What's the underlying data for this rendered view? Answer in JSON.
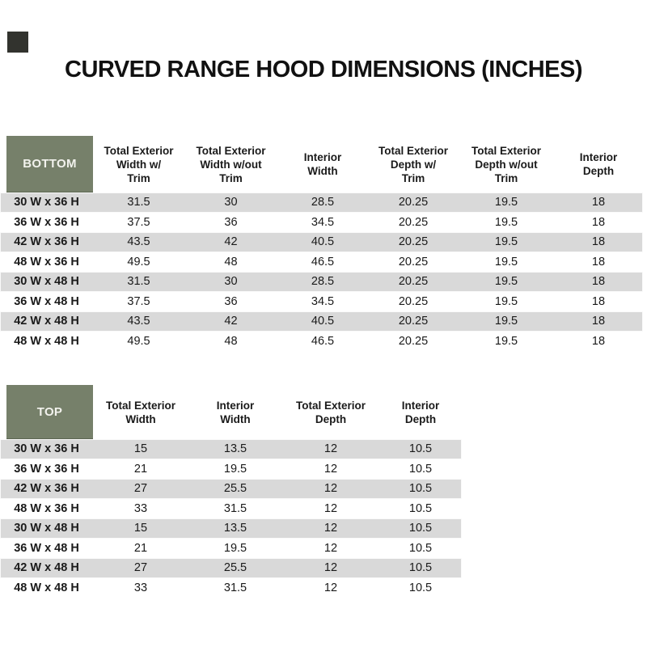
{
  "page": {
    "title": "CURVED RANGE HOOD DIMENSIONS (INCHES)"
  },
  "colors": {
    "accent_green": "#76806A",
    "stripe_gray": "#D9D9D9",
    "corner_mark": "#32332E",
    "label_text": "#F2F2ED"
  },
  "tables": [
    {
      "id": "bottom",
      "label": "BOTTOM",
      "headers": [
        [
          "Total Exterior",
          "Width w/",
          "Trim"
        ],
        [
          "Total Exterior",
          "Width w/out",
          "Trim"
        ],
        [
          "Interior",
          "Width"
        ],
        [
          "Total Exterior",
          "Depth w/",
          "Trim"
        ],
        [
          "Total Exterior",
          "Depth w/out",
          "Trim"
        ],
        [
          "Interior",
          "Depth"
        ]
      ],
      "rows": [
        {
          "label": "30 W x 36 H",
          "values": [
            "31.5",
            "30",
            "28.5",
            "20.25",
            "19.5",
            "18"
          ]
        },
        {
          "label": "36 W x 36 H",
          "values": [
            "37.5",
            "36",
            "34.5",
            "20.25",
            "19.5",
            "18"
          ]
        },
        {
          "label": "42 W x 36 H",
          "values": [
            "43.5",
            "42",
            "40.5",
            "20.25",
            "19.5",
            "18"
          ]
        },
        {
          "label": "48 W x 36 H",
          "values": [
            "49.5",
            "48",
            "46.5",
            "20.25",
            "19.5",
            "18"
          ]
        },
        {
          "label": "30 W x 48 H",
          "values": [
            "31.5",
            "30",
            "28.5",
            "20.25",
            "19.5",
            "18"
          ]
        },
        {
          "label": "36 W x 48 H",
          "values": [
            "37.5",
            "36",
            "34.5",
            "20.25",
            "19.5",
            "18"
          ]
        },
        {
          "label": "42 W x 48 H",
          "values": [
            "43.5",
            "42",
            "40.5",
            "20.25",
            "19.5",
            "18"
          ]
        },
        {
          "label": "48 W x 48 H",
          "values": [
            "49.5",
            "48",
            "46.5",
            "20.25",
            "19.5",
            "18"
          ]
        }
      ]
    },
    {
      "id": "top",
      "label": "TOP",
      "headers": [
        [
          "Total Exterior",
          "Width"
        ],
        [
          "Interior",
          "Width"
        ],
        [
          "Total Exterior",
          "Depth"
        ],
        [
          "Interior",
          "Depth"
        ]
      ],
      "rows": [
        {
          "label": "30 W x 36 H",
          "values": [
            "15",
            "13.5",
            "12",
            "10.5"
          ]
        },
        {
          "label": "36 W x 36 H",
          "values": [
            "21",
            "19.5",
            "12",
            "10.5"
          ]
        },
        {
          "label": "42 W x 36 H",
          "values": [
            "27",
            "25.5",
            "12",
            "10.5"
          ]
        },
        {
          "label": "48 W x 36 H",
          "values": [
            "33",
            "31.5",
            "12",
            "10.5"
          ]
        },
        {
          "label": "30 W x 48 H",
          "values": [
            "15",
            "13.5",
            "12",
            "10.5"
          ]
        },
        {
          "label": "36 W x 48 H",
          "values": [
            "21",
            "19.5",
            "12",
            "10.5"
          ]
        },
        {
          "label": "42 W x 48 H",
          "values": [
            "27",
            "25.5",
            "12",
            "10.5"
          ]
        },
        {
          "label": "48 W x 48 H",
          "values": [
            "33",
            "31.5",
            "12",
            "10.5"
          ]
        }
      ]
    }
  ]
}
